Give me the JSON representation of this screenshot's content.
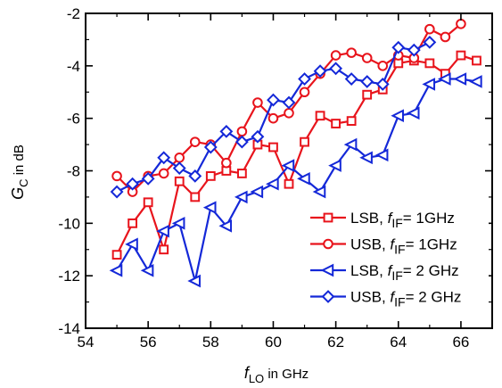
{
  "chart_data": {
    "type": "line",
    "xlim": [
      54,
      67
    ],
    "ylim": [
      -14,
      -2
    ],
    "x_ticks": [
      54,
      56,
      58,
      60,
      62,
      64,
      66
    ],
    "y_ticks": [
      -14,
      -12,
      -10,
      -8,
      -6,
      -4,
      -2
    ],
    "x_tick_labels": [
      "54",
      "56",
      "58",
      "60",
      "62",
      "64",
      "66"
    ],
    "y_tick_labels": [
      "-14",
      "-12",
      "-10",
      "-8",
      "-6",
      "-4",
      "-2"
    ],
    "xlabel": {
      "main": "f",
      "sub": "LO",
      "rest": " in GHz"
    },
    "ylabel": {
      "main": "G",
      "sub": "C",
      "rest": " in dB"
    },
    "grid": "dotted",
    "legend_position": "bottom-right",
    "series": [
      {
        "name": "LSB, fIF= 1GHz",
        "legend": {
          "prefix": "LSB, ",
          "f": "f",
          "sub": "IF",
          "suffix": "= 1GHz"
        },
        "color": "#e8141c",
        "marker": "square",
        "x": [
          55,
          55.5,
          56,
          56.5,
          57,
          57.5,
          58,
          58.5,
          59,
          59.5,
          60,
          60.5,
          61,
          61.5,
          62,
          62.5,
          63,
          63.5,
          64,
          64.5,
          65,
          65.5,
          66,
          66.5
        ],
        "y": [
          -11.2,
          -10.0,
          -9.2,
          -11.0,
          -8.4,
          -9.0,
          -8.2,
          -8.0,
          -8.1,
          -7.0,
          -7.1,
          -8.5,
          -6.9,
          -5.9,
          -6.2,
          -6.1,
          -5.1,
          -4.9,
          -3.9,
          -3.8,
          -3.9,
          -4.3,
          -3.6,
          -3.8
        ]
      },
      {
        "name": "USB, fIF= 1GHz",
        "legend": {
          "prefix": "USB, ",
          "f": "f",
          "sub": "IF",
          "suffix": "= 1GHz"
        },
        "color": "#e8141c",
        "marker": "circle",
        "x": [
          55,
          55.5,
          56,
          56.5,
          57,
          57.5,
          58,
          58.5,
          59,
          59.5,
          60,
          60.5,
          61,
          61.5,
          62,
          62.5,
          63,
          63.5,
          64,
          64.5,
          65,
          65.5,
          66
        ],
        "y": [
          -8.2,
          -8.8,
          -8.2,
          -8.1,
          -7.5,
          -6.9,
          -7.0,
          -7.7,
          -6.5,
          -5.4,
          -6.0,
          -5.8,
          -5.0,
          -4.3,
          -3.6,
          -3.5,
          -3.7,
          -4.0,
          -3.6,
          -3.7,
          -2.6,
          -2.9,
          -2.4
        ]
      },
      {
        "name": "LSB, fIF= 2 GHz",
        "legend": {
          "prefix": "LSB, ",
          "f": "f",
          "sub": "IF",
          "suffix": "= 2 GHz"
        },
        "color": "#1428d8",
        "marker": "triangle-left",
        "x": [
          55,
          55.5,
          56,
          56.5,
          57,
          57.5,
          58,
          58.5,
          59,
          59.5,
          60,
          60.5,
          61,
          61.5,
          62,
          62.5,
          63,
          63.5,
          64,
          64.5,
          65,
          65.5,
          66,
          66.5
        ],
        "y": [
          -11.8,
          -10.8,
          -11.8,
          -10.3,
          -10.0,
          -12.2,
          -9.4,
          -10.1,
          -9.0,
          -8.8,
          -8.5,
          -7.8,
          -8.3,
          -8.8,
          -7.8,
          -7.0,
          -7.5,
          -7.4,
          -5.9,
          -5.8,
          -4.7,
          -4.5,
          -4.5,
          -4.6
        ]
      },
      {
        "name": "USB, fIF= 2 GHz",
        "legend": {
          "prefix": "USB, ",
          "f": "f",
          "sub": "IF",
          "suffix": "= 2 GHz"
        },
        "color": "#1428d8",
        "marker": "diamond",
        "x": [
          55,
          55.5,
          56,
          56.5,
          57,
          57.5,
          58,
          58.5,
          59,
          59.5,
          60,
          60.5,
          61,
          61.5,
          62,
          62.5,
          63,
          63.5,
          64,
          64.5,
          65
        ],
        "y": [
          -8.8,
          -8.5,
          -8.3,
          -7.5,
          -7.9,
          -8.2,
          -7.1,
          -6.5,
          -6.9,
          -6.7,
          -5.3,
          -5.4,
          -4.5,
          -4.2,
          -4.1,
          -4.5,
          -4.6,
          -4.7,
          -3.3,
          -3.4,
          -3.1
        ]
      }
    ]
  }
}
